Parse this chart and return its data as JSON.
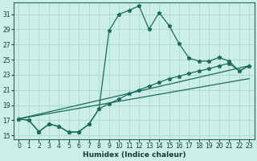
{
  "xlabel": "Humidex (Indice chaleur)",
  "bg_color": "#cceee8",
  "grid_color": "#aad8d2",
  "line_color": "#1a6b5a",
  "xlim": [
    -0.5,
    23.5
  ],
  "ylim": [
    14.5,
    32.5
  ],
  "yticks": [
    15,
    17,
    19,
    21,
    23,
    25,
    27,
    29,
    31
  ],
  "xticks": [
    0,
    1,
    2,
    3,
    4,
    5,
    6,
    7,
    8,
    9,
    10,
    11,
    12,
    13,
    14,
    15,
    16,
    17,
    18,
    19,
    20,
    21,
    22,
    23
  ],
  "curve1_x": [
    0,
    1,
    2,
    3,
    4,
    5,
    6,
    7,
    8,
    9,
    10,
    11,
    12,
    13,
    14,
    15,
    16,
    17,
    18,
    19,
    20,
    21,
    22,
    23
  ],
  "curve1_y": [
    17.2,
    17.0,
    15.5,
    16.5,
    16.2,
    15.4,
    15.5,
    16.5,
    18.5,
    28.8,
    31.0,
    31.5,
    32.1,
    29.0,
    31.2,
    29.5,
    27.1,
    25.2,
    24.8,
    24.8,
    25.3,
    24.8,
    23.5,
    24.2
  ],
  "curve2_x": [
    0,
    1,
    2,
    3,
    4,
    5,
    6,
    7,
    8,
    9,
    10,
    11,
    12,
    13,
    14,
    15,
    16,
    17,
    18,
    19,
    20,
    21,
    22,
    23
  ],
  "curve2_y": [
    17.2,
    17.0,
    15.5,
    16.5,
    16.2,
    15.4,
    15.5,
    16.5,
    18.5,
    19.2,
    19.8,
    20.5,
    21.0,
    21.5,
    22.0,
    22.5,
    22.8,
    23.2,
    23.5,
    23.8,
    24.2,
    24.5,
    23.5,
    24.2
  ],
  "curve3_x": [
    0,
    23
  ],
  "curve3_y": [
    17.2,
    24.2
  ],
  "curve4_x": [
    0,
    23
  ],
  "curve4_y": [
    17.2,
    22.5
  ]
}
